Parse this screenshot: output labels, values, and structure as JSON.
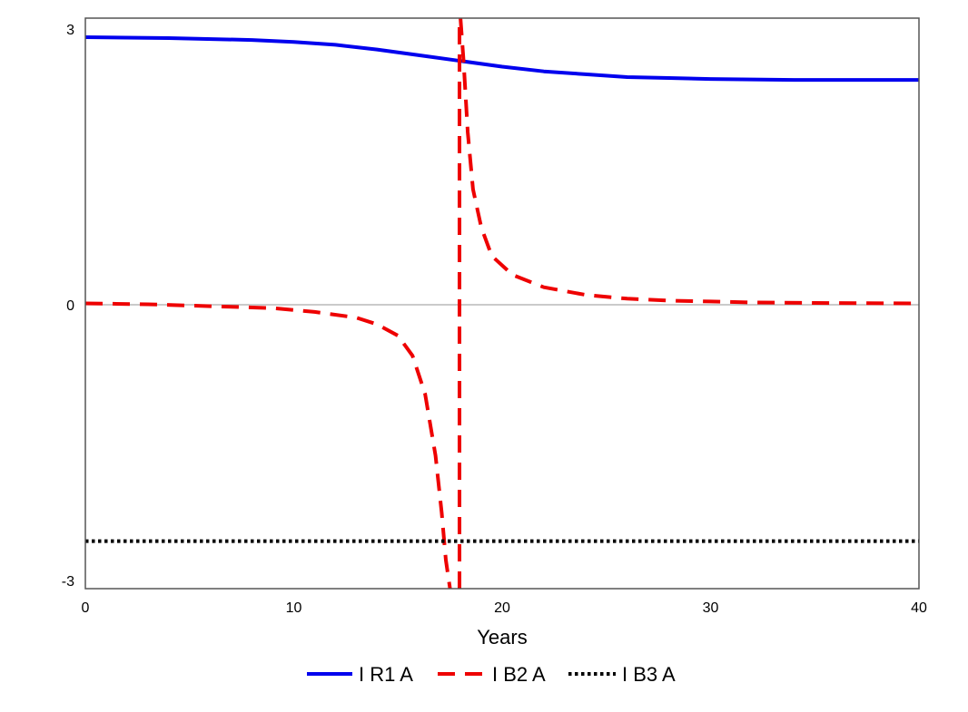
{
  "chart_data": {
    "type": "line",
    "title": "",
    "xlabel": "Years",
    "ylabel": "",
    "xlim": [
      0,
      40
    ],
    "ylim": [
      -3,
      3
    ],
    "xticks": [
      "0",
      "10",
      "20",
      "30",
      "40"
    ],
    "yticks": [
      "-3",
      "0",
      "3"
    ],
    "grid": false,
    "legend": "bottom",
    "series": [
      {
        "name": "I R1 A",
        "color": "#0000ee",
        "style": "solid",
        "segments": [
          {
            "x": [
              0,
              4,
              8,
              10,
              12,
              14,
              16,
              18,
              20,
              22,
              24,
              26,
              28,
              30,
              32,
              34,
              36,
              38,
              40
            ],
            "y": [
              2.8,
              2.79,
              2.77,
              2.75,
              2.72,
              2.67,
              2.61,
              2.55,
              2.49,
              2.44,
              2.41,
              2.38,
              2.37,
              2.36,
              2.355,
              2.35,
              2.35,
              2.35,
              2.35
            ]
          }
        ]
      },
      {
        "name": "I B2 A",
        "color": "#ee0000",
        "style": "dashed",
        "segments": [
          {
            "x": [
              0,
              3,
              6,
              9,
              11,
              13,
              14,
              15,
              15.7,
              16.3,
              16.8,
              17.1,
              17.3,
              17.5
            ],
            "y": [
              0,
              -0.01,
              -0.03,
              -0.05,
              -0.09,
              -0.15,
              -0.22,
              -0.34,
              -0.55,
              -0.95,
              -1.6,
              -2.2,
              -2.7,
              -3.0
            ]
          },
          {
            "x": [
              17.95,
              17.95
            ],
            "y": [
              -3.0,
              3.0
            ]
          },
          {
            "x": [
              18.0,
              18.15,
              18.35,
              18.6,
              19.0,
              19.5,
              20.5,
              22,
              24,
              26,
              28,
              30,
              32,
              35,
              40
            ],
            "y": [
              3.0,
              2.55,
              1.8,
              1.2,
              0.8,
              0.5,
              0.3,
              0.17,
              0.09,
              0.05,
              0.03,
              0.02,
              0.01,
              0.005,
              0.0
            ]
          }
        ]
      },
      {
        "name": "I B3 A",
        "color": "#000000",
        "style": "dotted",
        "segments": [
          {
            "x": [
              0,
              40
            ],
            "y": [
              -2.5,
              -2.5
            ]
          }
        ]
      }
    ]
  }
}
